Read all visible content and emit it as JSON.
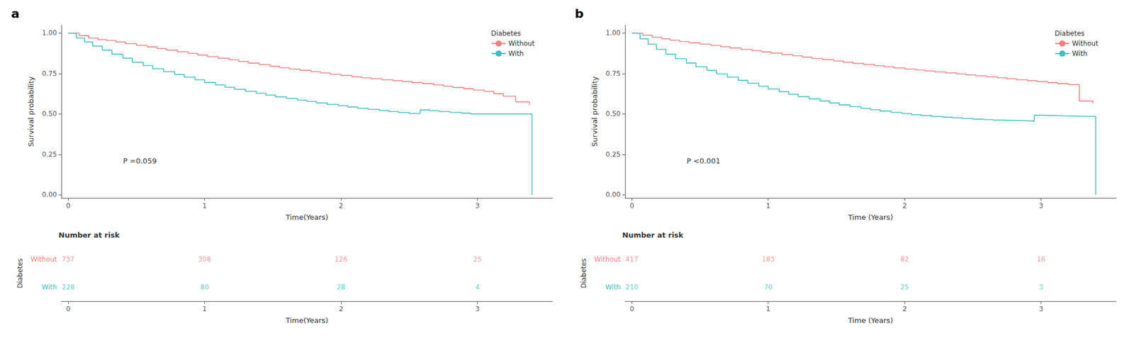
{
  "chart_data": [
    {
      "type": "step",
      "title": "a",
      "xlabel": "Time(Years)",
      "ylabel": "Survival probability",
      "annotations": [
        {
          "text": "P =0.059"
        }
      ],
      "legend": "upper right",
      "legend_title": "Diabetes",
      "grid": false,
      "xlim": [
        -0.05,
        3.55
      ],
      "xticks": [
        0,
        1,
        2,
        3
      ],
      "ylim": [
        -0.02,
        1.05
      ],
      "yticks": [
        {
          "value": 0.0,
          "label": "0.00"
        },
        0.25,
        {
          "value": 0.5,
          "label": "0.50"
        },
        0.75,
        {
          "value": 1.0,
          "label": "1.00"
        }
      ],
      "series": [
        {
          "name": "Without",
          "color": "#F08080",
          "x": [
            0,
            0.08,
            0.15,
            0.22,
            0.28,
            0.35,
            0.42,
            0.5,
            0.58,
            0.65,
            0.72,
            0.8,
            0.88,
            0.95,
            1.02,
            1.1,
            1.18,
            1.25,
            1.32,
            1.4,
            1.48,
            1.55,
            1.62,
            1.7,
            1.78,
            1.85,
            1.92,
            2.0,
            2.08,
            2.15,
            2.22,
            2.3,
            2.38,
            2.45,
            2.52,
            2.6,
            2.68,
            2.75,
            2.82,
            2.9,
            2.97,
            3.05,
            3.12,
            3.19,
            3.28,
            3.38
          ],
          "values": [
            1.0,
            0.985,
            0.97,
            0.96,
            0.955,
            0.945,
            0.935,
            0.925,
            0.915,
            0.905,
            0.895,
            0.885,
            0.875,
            0.865,
            0.855,
            0.845,
            0.835,
            0.825,
            0.815,
            0.805,
            0.795,
            0.786,
            0.778,
            0.77,
            0.762,
            0.754,
            0.746,
            0.738,
            0.73,
            0.724,
            0.718,
            0.712,
            0.706,
            0.7,
            0.694,
            0.688,
            0.68,
            0.672,
            0.664,
            0.656,
            0.648,
            0.64,
            0.625,
            0.61,
            0.575,
            0.555
          ]
        },
        {
          "name": "With",
          "color": "#40BEC0",
          "x": [
            0,
            0.06,
            0.12,
            0.18,
            0.25,
            0.32,
            0.4,
            0.47,
            0.55,
            0.62,
            0.7,
            0.78,
            0.85,
            0.93,
            1.0,
            1.08,
            1.15,
            1.22,
            1.3,
            1.38,
            1.45,
            1.52,
            1.6,
            1.68,
            1.75,
            1.82,
            1.9,
            1.98,
            2.05,
            2.12,
            2.2,
            2.28,
            2.35,
            2.42,
            2.5,
            2.58,
            2.65,
            2.72,
            2.8,
            2.88,
            2.95,
            3.02,
            3.1,
            3.17,
            3.28,
            3.4
          ],
          "values": [
            1.0,
            0.97,
            0.945,
            0.92,
            0.895,
            0.87,
            0.845,
            0.82,
            0.8,
            0.78,
            0.762,
            0.745,
            0.728,
            0.712,
            0.695,
            0.68,
            0.665,
            0.652,
            0.64,
            0.628,
            0.617,
            0.606,
            0.596,
            0.586,
            0.577,
            0.568,
            0.559,
            0.551,
            0.543,
            0.535,
            0.528,
            0.521,
            0.515,
            0.509,
            0.503,
            0.525,
            0.52,
            0.515,
            0.51,
            0.505,
            0.5,
            0.5,
            0.5,
            0.5,
            0.5,
            0.0
          ]
        }
      ],
      "risk_table": {
        "title": "Number at risk",
        "ylabel": "Diabetes",
        "xlabel": "Time(Years)",
        "xlim": [
          -0.05,
          3.55
        ],
        "xticks": [
          0,
          1,
          2,
          3
        ],
        "x": [
          0,
          1,
          2,
          3
        ],
        "rows": [
          {
            "name": "Without",
            "color": "#F08080",
            "values": [
              737,
              308,
              126,
              25
            ]
          },
          {
            "name": "With",
            "color": "#40BEC0",
            "values": [
              228,
              80,
              28,
              4
            ]
          }
        ]
      }
    },
    {
      "type": "step",
      "title": "b",
      "xlabel": "Time (Years)",
      "ylabel": "Survival probability",
      "annotations": [
        {
          "text": "P <0.001"
        }
      ],
      "legend": "upper right",
      "legend_title": "Diabetes",
      "grid": false,
      "xlim": [
        -0.05,
        3.55
      ],
      "xticks": [
        0,
        1,
        2,
        3
      ],
      "ylim": [
        -0.02,
        1.05
      ],
      "yticks": [
        {
          "value": 0.0,
          "label": "0.00"
        },
        0.25,
        {
          "value": 0.5,
          "label": "0.50"
        },
        0.75,
        {
          "value": 1.0,
          "label": "1.00"
        }
      ],
      "series": [
        {
          "name": "Without",
          "color": "#F08080",
          "x": [
            0,
            0.08,
            0.15,
            0.22,
            0.28,
            0.35,
            0.42,
            0.5,
            0.58,
            0.65,
            0.72,
            0.8,
            0.88,
            0.95,
            1.02,
            1.1,
            1.18,
            1.25,
            1.32,
            1.4,
            1.48,
            1.55,
            1.62,
            1.7,
            1.78,
            1.85,
            1.92,
            2.0,
            2.08,
            2.15,
            2.22,
            2.3,
            2.38,
            2.45,
            2.52,
            2.6,
            2.68,
            2.75,
            2.82,
            2.9,
            2.97,
            3.05,
            3.12,
            3.2,
            3.28,
            3.38
          ],
          "values": [
            1.0,
            0.988,
            0.975,
            0.965,
            0.957,
            0.948,
            0.94,
            0.932,
            0.924,
            0.916,
            0.908,
            0.9,
            0.892,
            0.884,
            0.876,
            0.868,
            0.86,
            0.852,
            0.844,
            0.836,
            0.828,
            0.82,
            0.813,
            0.806,
            0.799,
            0.792,
            0.785,
            0.778,
            0.772,
            0.766,
            0.76,
            0.754,
            0.748,
            0.742,
            0.736,
            0.73,
            0.724,
            0.718,
            0.712,
            0.706,
            0.7,
            0.694,
            0.688,
            0.682,
            0.58,
            0.565
          ]
        },
        {
          "name": "With",
          "color": "#40BEC0",
          "x": [
            0,
            0.06,
            0.12,
            0.18,
            0.25,
            0.32,
            0.4,
            0.47,
            0.55,
            0.62,
            0.7,
            0.78,
            0.85,
            0.93,
            1.0,
            1.08,
            1.15,
            1.22,
            1.3,
            1.38,
            1.45,
            1.52,
            1.6,
            1.68,
            1.75,
            1.82,
            1.9,
            1.98,
            2.05,
            2.12,
            2.2,
            2.28,
            2.35,
            2.42,
            2.5,
            2.58,
            2.65,
            2.72,
            2.8,
            2.88,
            2.95,
            3.02,
            3.1,
            3.17,
            3.28,
            3.4
          ],
          "values": [
            1.0,
            0.965,
            0.932,
            0.9,
            0.87,
            0.842,
            0.815,
            0.792,
            0.77,
            0.748,
            0.728,
            0.708,
            0.69,
            0.672,
            0.655,
            0.638,
            0.622,
            0.607,
            0.593,
            0.58,
            0.568,
            0.556,
            0.545,
            0.535,
            0.526,
            0.518,
            0.51,
            0.502,
            0.495,
            0.49,
            0.485,
            0.48,
            0.476,
            0.472,
            0.468,
            0.465,
            0.462,
            0.46,
            0.458,
            0.456,
            0.492,
            0.49,
            0.488,
            0.486,
            0.485,
            0.0
          ]
        }
      ],
      "risk_table": {
        "title": "Number at risk",
        "ylabel": "Diabetes",
        "xlabel": "Time (Years)",
        "xlim": [
          -0.05,
          3.55
        ],
        "xticks": [
          0,
          1,
          2,
          3
        ],
        "x": [
          0,
          1,
          2,
          3
        ],
        "rows": [
          {
            "name": "Without",
            "color": "#F08080",
            "values": [
              417,
              183,
              82,
              16
            ]
          },
          {
            "name": "With",
            "color": "#40BEC0",
            "values": [
              210,
              70,
              25,
              3
            ]
          }
        ]
      }
    }
  ]
}
